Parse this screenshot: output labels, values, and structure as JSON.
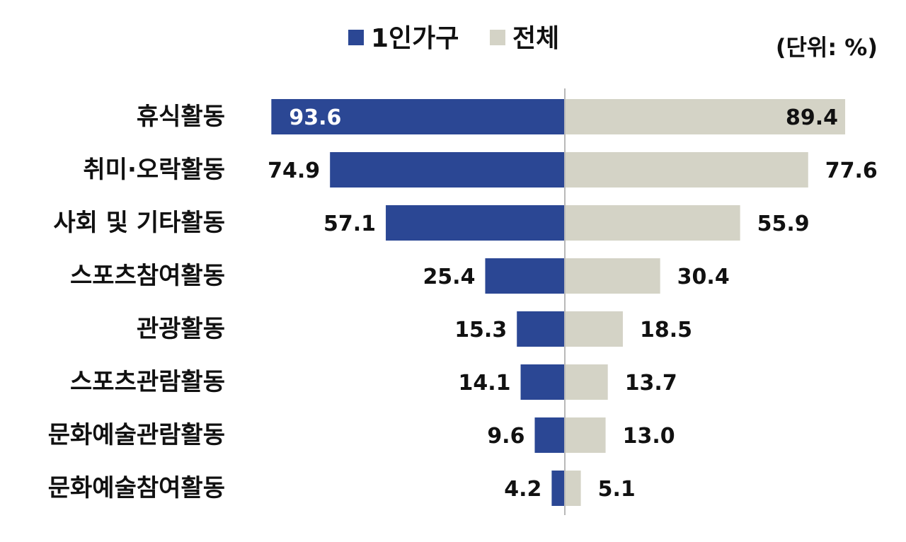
{
  "chart_data": {
    "type": "bar",
    "orientation": "horizontal-diverging",
    "unit": "(단위: %)",
    "legend_position": "top-center",
    "categories": [
      "휴식활동",
      "취미·오락활동",
      "사회 및 기타활동",
      "스포츠참여활동",
      "관광활동",
      "스포츠관람활동",
      "문화예술관람활동",
      "문화예술참여활동"
    ],
    "series": [
      {
        "name": "1인가구",
        "color": "#2B4794",
        "side": "left",
        "values": [
          93.6,
          74.9,
          57.1,
          25.4,
          15.3,
          14.1,
          9.6,
          4.2
        ],
        "labels": [
          "93.6",
          "74.9",
          "57.1",
          "25.4",
          "15.3",
          "14.1",
          "9.6",
          "4.2"
        ]
      },
      {
        "name": "전체",
        "color": "#D4D3C6",
        "side": "right",
        "values": [
          89.4,
          77.6,
          55.9,
          30.4,
          18.5,
          13.7,
          13.0,
          5.1
        ],
        "labels": [
          "89.4",
          "77.6",
          "55.9",
          "30.4",
          "18.5",
          "13.7",
          "13.0",
          "5.1"
        ]
      }
    ],
    "xlim": [
      0,
      100
    ],
    "grid": false
  }
}
